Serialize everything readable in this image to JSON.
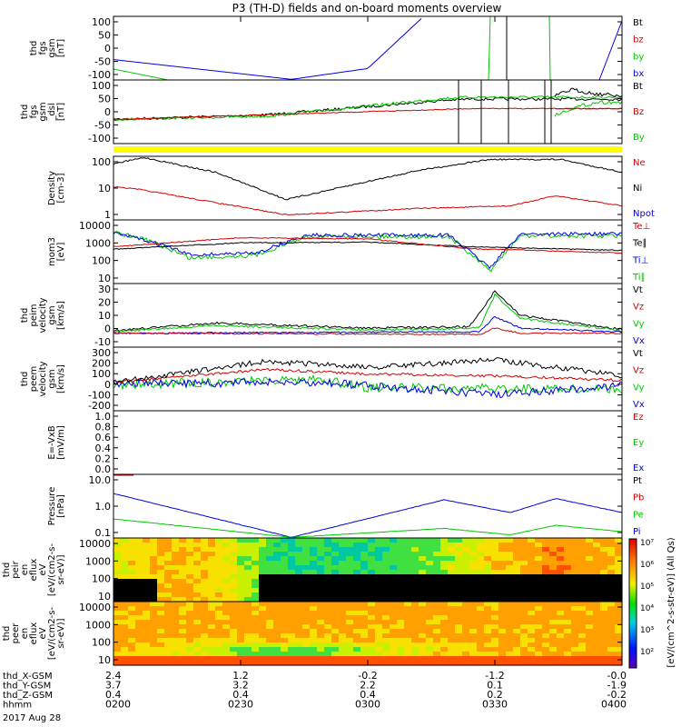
{
  "title": "P3 (TH-D) fields and on-board moments overview",
  "colors": {
    "black": "#000000",
    "red": "#d40000",
    "green": "#00c800",
    "blue": "#0000e0",
    "yellow": "#ffff00"
  },
  "chart_data": [
    {
      "type": "line",
      "ylabel": [
        "thd",
        "fgs",
        "gsm",
        "[nT]"
      ],
      "ylim": [
        -100,
        100
      ],
      "ticks": [
        "100",
        "50",
        "0",
        "-50",
        "-100"
      ],
      "legend": [
        {
          "label": "Bt",
          "color": "black"
        },
        {
          "label": "bz",
          "color": "red"
        },
        {
          "label": "by",
          "color": "green"
        },
        {
          "label": "bx",
          "color": "blue"
        }
      ]
    },
    {
      "type": "line",
      "ylabel": [
        "thd",
        "fgs",
        "gsm",
        "_dsl",
        "[nT]"
      ],
      "ylim": [
        -120,
        100
      ],
      "ticks": [
        "100",
        "50",
        "0",
        "-50",
        "-100"
      ],
      "legend": [
        {
          "label": "Bt",
          "color": "black"
        },
        {
          "label": "Bz",
          "color": "red"
        },
        {
          "label": "By",
          "color": "green"
        }
      ]
    },
    {
      "type": "line",
      "ylabel": [
        "Density",
        "[cm-3]"
      ],
      "scale": "log",
      "ticks": [
        "100",
        "10",
        "1"
      ],
      "legend": [
        {
          "label": "Ne",
          "color": "red"
        },
        {
          "label": "Ni",
          "color": "black"
        },
        {
          "label": "Npot",
          "color": "blue"
        }
      ]
    },
    {
      "type": "line",
      "ylabel": [
        "mom3",
        "[eV]"
      ],
      "scale": "log",
      "ticks": [
        "10000",
        "1000",
        "100",
        "10"
      ],
      "legend": [
        {
          "label": "Te⊥",
          "color": "red"
        },
        {
          "label": "Te∥",
          "color": "black"
        },
        {
          "label": "Ti⊥",
          "color": "blue"
        },
        {
          "label": "Ti∥",
          "color": "green"
        }
      ]
    },
    {
      "type": "line",
      "ylabel": [
        "thd",
        "peim",
        "velocity",
        "gsm",
        "[km/s]"
      ],
      "ylim": [
        -10,
        30
      ],
      "ticks": [
        "30",
        "20",
        "10",
        "0",
        "-10"
      ],
      "legend": [
        {
          "label": "Vt",
          "color": "black"
        },
        {
          "label": "Vz",
          "color": "red"
        },
        {
          "label": "Vy",
          "color": "green"
        },
        {
          "label": "Vx",
          "color": "blue"
        }
      ]
    },
    {
      "type": "line",
      "ylabel": [
        "thd",
        "peem",
        "velocity",
        "gsm",
        "[km/s]"
      ],
      "ylim": [
        -200,
        300
      ],
      "ticks": [
        "300",
        "200",
        "100",
        "0",
        "-100",
        "-200"
      ],
      "legend": [
        {
          "label": "Vt",
          "color": "black"
        },
        {
          "label": "Vz",
          "color": "red"
        },
        {
          "label": "Vy",
          "color": "green"
        },
        {
          "label": "Vx",
          "color": "blue"
        }
      ]
    },
    {
      "type": "line",
      "ylabel": [
        "E=-VxB",
        "[mV/m]"
      ],
      "ylim": [
        0,
        1
      ],
      "ticks": [
        "1.0",
        "0.8",
        "0.6",
        "0.4",
        "0.2",
        "0.0"
      ],
      "legend": [
        {
          "label": "Ez",
          "color": "red"
        },
        {
          "label": "Ey",
          "color": "green"
        },
        {
          "label": "Ex",
          "color": "blue"
        }
      ]
    },
    {
      "type": "line",
      "ylabel": [
        "Pressure",
        "[nPa]"
      ],
      "scale": "log",
      "ticks": [
        "10.0",
        "1.0",
        "0.1"
      ],
      "legend": [
        {
          "label": "Pt",
          "color": "black"
        },
        {
          "label": "Pb",
          "color": "red"
        },
        {
          "label": "Pe",
          "color": "green"
        },
        {
          "label": "Pi",
          "color": "blue"
        }
      ]
    },
    {
      "type": "heatmap",
      "ylabel": [
        "thd",
        "peir",
        "en",
        "eflux",
        "eV",
        "[eV/(cm2-s-",
        "sr-eV)]"
      ],
      "scale": "log",
      "ticks": [
        "10000",
        "1000",
        "100",
        "10"
      ]
    },
    {
      "type": "heatmap",
      "ylabel": [
        "thd",
        "peer",
        "en",
        "eflux",
        "eV",
        "[eV/(cm2-s-",
        "sr-eV)]"
      ],
      "scale": "log",
      "ticks": [
        "10000",
        "1000",
        "100",
        "10"
      ]
    }
  ],
  "colorbar": {
    "label": "[eV/(cm^2-s-str-eV)] (All Qs)",
    "ticks": [
      "10⁷",
      "10⁶",
      "10⁵",
      "10⁴",
      "10³",
      "10²"
    ]
  },
  "xaxis": {
    "rows": [
      {
        "label": "thd_X-GSM",
        "values": [
          "2.4",
          "1.2",
          "-0.2",
          "-1.2",
          "-0.0"
        ]
      },
      {
        "label": "thd_Y-GSM",
        "values": [
          "3.7",
          "3.2",
          "2.2",
          "0.1",
          "-1.9"
        ]
      },
      {
        "label": "thd_Z-GSM",
        "values": [
          "0.4",
          "0.4",
          "0.4",
          "0.2",
          "-0.2"
        ]
      },
      {
        "label": "hhmm",
        "values": [
          "0200",
          "0230",
          "0300",
          "0330",
          "0400"
        ]
      }
    ],
    "date": "2017 Aug 28"
  }
}
